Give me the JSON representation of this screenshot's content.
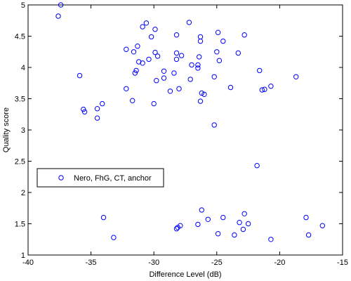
{
  "chart_data": {
    "type": "scatter",
    "xlabel": "Difference Level (dB)",
    "ylabel": "Quality score",
    "xlim": [
      -40,
      -15
    ],
    "ylim": [
      1,
      5
    ],
    "xticks": [
      -40,
      -35,
      -30,
      -25,
      -20,
      -15
    ],
    "yticks": [
      1,
      1.5,
      2,
      2.5,
      3,
      3.5,
      4,
      4.5,
      5
    ],
    "x_tick_labels": [
      "-40",
      "-35",
      "-30",
      "-25",
      "-20",
      "-15"
    ],
    "y_tick_labels": [
      "1",
      "1.5",
      "2",
      "2.5",
      "3",
      "3.5",
      "4",
      "4.5",
      "5"
    ],
    "legend_position": "middle-left",
    "grid": false,
    "marker": "open-circle",
    "color": "#0000ff",
    "series": [
      {
        "name": "Nero, FhG, CT, anchor",
        "points": [
          [
            -37.4,
            5.0
          ],
          [
            -37.6,
            4.82
          ],
          [
            -35.9,
            3.87
          ],
          [
            -35.6,
            3.33
          ],
          [
            -35.5,
            3.29
          ],
          [
            -34.5,
            3.34
          ],
          [
            -34.5,
            3.19
          ],
          [
            -34.1,
            3.42
          ],
          [
            -32.2,
            4.29
          ],
          [
            -32.2,
            3.66
          ],
          [
            -31.6,
            4.25
          ],
          [
            -31.3,
            4.34
          ],
          [
            -31.4,
            3.95
          ],
          [
            -31.5,
            3.91
          ],
          [
            -31.2,
            4.09
          ],
          [
            -30.9,
            4.07
          ],
          [
            -30.9,
            4.65
          ],
          [
            -30.6,
            4.71
          ],
          [
            -31.7,
            3.47
          ],
          [
            -30.4,
            4.13
          ],
          [
            -30.2,
            4.49
          ],
          [
            -29.9,
            4.61
          ],
          [
            -29.9,
            4.24
          ],
          [
            -29.7,
            4.18
          ],
          [
            -29.8,
            3.79
          ],
          [
            -30.0,
            3.42
          ],
          [
            -29.2,
            3.94
          ],
          [
            -29.2,
            3.83
          ],
          [
            -28.7,
            3.62
          ],
          [
            -28.4,
            3.91
          ],
          [
            -28.2,
            4.52
          ],
          [
            -28.2,
            4.23
          ],
          [
            -28.2,
            4.13
          ],
          [
            -28.0,
            3.66
          ],
          [
            -27.8,
            4.19
          ],
          [
            -27.2,
            4.72
          ],
          [
            -27.0,
            4.04
          ],
          [
            -27.1,
            3.81
          ],
          [
            -26.4,
            4.17
          ],
          [
            -26.5,
            4.04
          ],
          [
            -26.5,
            3.99
          ],
          [
            -26.3,
            4.49
          ],
          [
            -26.3,
            4.42
          ],
          [
            -26.2,
            3.59
          ],
          [
            -26.0,
            3.57
          ],
          [
            -26.3,
            3.46
          ],
          [
            -25.2,
            3.85
          ],
          [
            -24.9,
            4.56
          ],
          [
            -25.0,
            4.25
          ],
          [
            -24.8,
            4.11
          ],
          [
            -24.5,
            4.42
          ],
          [
            -25.2,
            3.08
          ],
          [
            -23.9,
            3.68
          ],
          [
            -23.3,
            4.23
          ],
          [
            -22.8,
            4.52
          ],
          [
            -21.6,
            3.95
          ],
          [
            -21.4,
            3.64
          ],
          [
            -21.2,
            3.65
          ],
          [
            -20.7,
            3.7
          ],
          [
            -18.7,
            3.85
          ],
          [
            -21.8,
            2.43
          ],
          [
            -34.0,
            1.6
          ],
          [
            -33.2,
            1.28
          ],
          [
            -28.2,
            1.42
          ],
          [
            -28.1,
            1.44
          ],
          [
            -27.9,
            1.47
          ],
          [
            -26.5,
            1.49
          ],
          [
            -26.2,
            1.72
          ],
          [
            -25.7,
            1.57
          ],
          [
            -24.5,
            1.6
          ],
          [
            -24.9,
            1.34
          ],
          [
            -23.6,
            1.32
          ],
          [
            -23.2,
            1.52
          ],
          [
            -22.9,
            1.41
          ],
          [
            -22.8,
            1.66
          ],
          [
            -22.5,
            1.5
          ],
          [
            -20.7,
            1.25
          ],
          [
            -17.9,
            1.6
          ],
          [
            -17.7,
            1.32
          ],
          [
            -16.6,
            1.47
          ]
        ]
      }
    ]
  }
}
